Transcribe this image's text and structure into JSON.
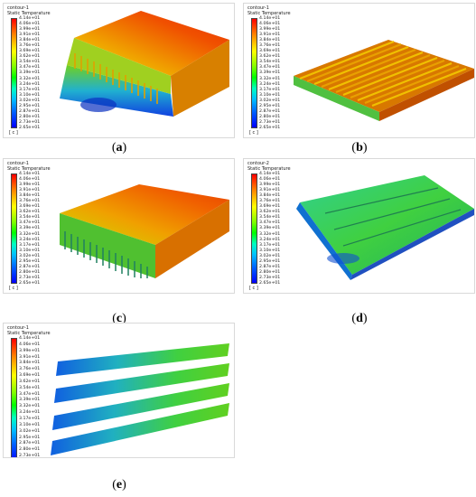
{
  "colorbar_ticks": [
    "4.14e+01",
    "4.06e+01",
    "3.99e+01",
    "3.91e+01",
    "3.84e+01",
    "3.76e+01",
    "3.69e+01",
    "3.62e+01",
    "3.54e+01",
    "3.47e+01",
    "3.39e+01",
    "3.32e+01",
    "3.24e+01",
    "3.17e+01",
    "3.10e+01",
    "3.02e+01",
    "2.95e+01",
    "2.87e+01",
    "2.80e+01",
    "2.73e+01",
    "2.65e+01"
  ],
  "unit": "[ c ]",
  "panels": [
    {
      "contour": "contour-1",
      "quantity": "Static Temperature",
      "caption_letter": "a"
    },
    {
      "contour": "contour-1",
      "quantity": "Static Temperature",
      "caption_letter": "b"
    },
    {
      "contour": "contour-1",
      "quantity": "Static Temperature",
      "caption_letter": "c"
    },
    {
      "contour": "contour-2",
      "quantity": "Static Temperature",
      "caption_letter": "d"
    },
    {
      "contour": "contour-1",
      "quantity": "Static Temperature",
      "caption_letter": "e"
    }
  ],
  "caption_open": "(",
  "caption_close": ")"
}
